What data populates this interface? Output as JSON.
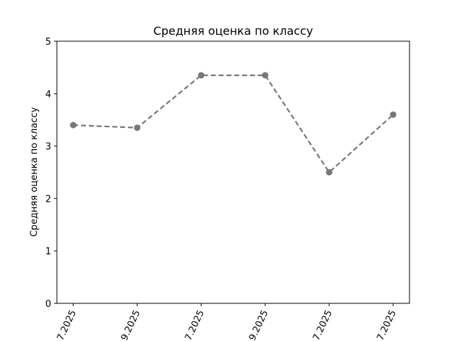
{
  "chart_data": {
    "type": "line",
    "title": "Средняя оценка по классу",
    "xlabel": "",
    "ylabel": "Средняя оценка по классу",
    "categories": [
      "7.2025",
      "9.2025",
      "7.2025",
      "9.2025",
      "7.2025",
      "7.2025"
    ],
    "series": [
      {
        "values": [
          3.4,
          3.35,
          4.35,
          4.35,
          2.5,
          3.6
        ],
        "color": "#777777",
        "line_style": "dashed",
        "marker": "circle"
      }
    ],
    "ylim": [
      0,
      5
    ],
    "yticks": [
      0,
      1,
      2,
      3,
      4,
      5
    ],
    "grid": false,
    "legend": "none"
  }
}
